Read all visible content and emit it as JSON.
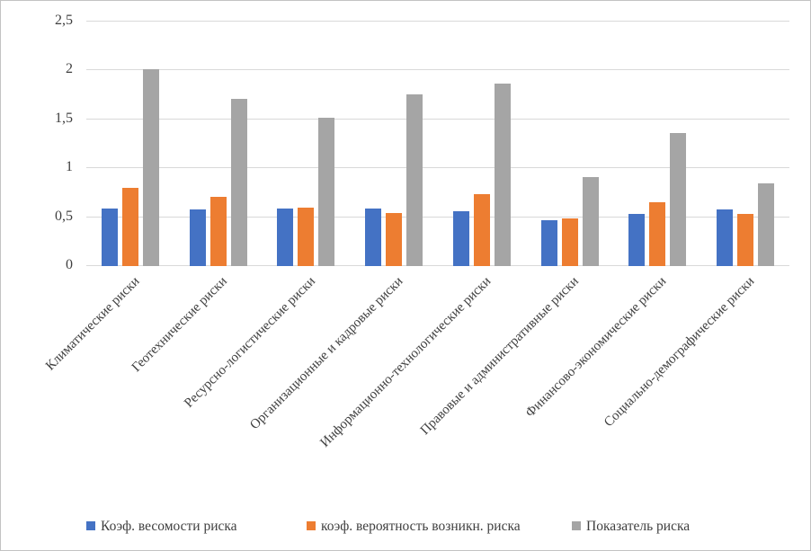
{
  "chart_data": {
    "type": "bar",
    "title": "",
    "xlabel": "",
    "ylabel": "",
    "categories": [
      "Климатические риски",
      "Геотехнические риски",
      "Ресурсно-логистические риски",
      "Организационные и кадровые риски",
      "Информационно-технологические риски",
      "Правовые и административные риски",
      "Финансово-экономические риски",
      "Социально-демографические риски"
    ],
    "series": [
      {
        "name": "Коэф. весомости риска",
        "color": "#4472C4",
        "values": [
          0.59,
          0.58,
          0.59,
          0.59,
          0.56,
          0.47,
          0.53,
          0.58
        ]
      },
      {
        "name": "коэф. вероятность возникн. риска",
        "color": "#ED7D31",
        "values": [
          0.8,
          0.71,
          0.6,
          0.54,
          0.74,
          0.49,
          0.65,
          0.53
        ]
      },
      {
        "name": "Показатель риска",
        "color": "#A5A5A5",
        "values": [
          2.01,
          1.71,
          1.52,
          1.76,
          1.87,
          0.91,
          1.36,
          0.85
        ]
      }
    ],
    "ylim": [
      0,
      2.5
    ],
    "ytick_values": [
      0,
      0.5,
      1,
      1.5,
      2,
      2.5
    ],
    "ytick_labels": [
      "0",
      "0,5",
      "1",
      "1,5",
      "2",
      "2,5"
    ],
    "grid": true,
    "legend_position": "bottom",
    "colors": {
      "gridline": "#d9d9d9",
      "text": "#3f3f3f",
      "background": "#ffffff",
      "frame_border": "#c3c3c3"
    }
  }
}
